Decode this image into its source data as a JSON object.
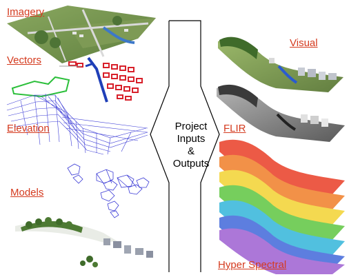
{
  "inputs": {
    "labels": [
      "Imagery",
      "Vectors",
      "Elevation",
      "Models"
    ]
  },
  "outputs": {
    "labels": [
      "Visual",
      "FLIR",
      "Hyper Spectral"
    ]
  },
  "center": {
    "lines": [
      "Project",
      "Inputs",
      "&",
      "Outputs"
    ]
  },
  "colors": {
    "label": "#d43a1e",
    "wireframe": "#3b3bd6",
    "vectors_red": "#d8202a",
    "vectors_green": "#2bbf3a",
    "river_blue": "#2a5bd0",
    "grass": "#6f8f4a",
    "forest": "#3f6b2a"
  },
  "icons": {
    "double_arrow": "bidirectional-arrow-icon"
  }
}
